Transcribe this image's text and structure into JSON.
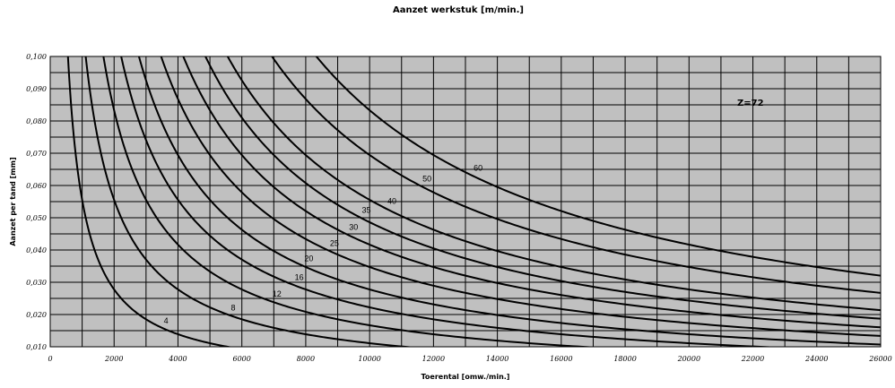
{
  "chart_data": {
    "type": "line",
    "title": "Aanzet werkstuk [m/min.]",
    "xlabel": "Toerental [omw./min.]",
    "ylabel": "Aanzet per tand [mm]",
    "annotation": "Z=72",
    "teeth": 72,
    "xlim": [
      0,
      26000
    ],
    "ylim": [
      0.01,
      0.1
    ],
    "x_ticks": [
      "0",
      "2000",
      "4000",
      "6000",
      "8000",
      "10000",
      "12000",
      "14000",
      "16000",
      "18000",
      "20000",
      "22000",
      "24000",
      "26000"
    ],
    "y_ticks": [
      "0,010",
      "0,020",
      "0,030",
      "0,040",
      "0,050",
      "0,060",
      "0,070",
      "0,080",
      "0,090",
      "0,100"
    ],
    "x_minor_step": 1000,
    "y_minor_step": 0.005,
    "grid": true,
    "formula": "aanzet per tand [mm] = aanzet werkstuk [m/min] * 1000 / (Z * toerental)",
    "series": [
      {
        "name": "4",
        "feed_m_per_min": 4,
        "label_at": 3500
      },
      {
        "name": "8",
        "feed_m_per_min": 8,
        "label_at": 5600
      },
      {
        "name": "12",
        "feed_m_per_min": 12,
        "label_at": 6900
      },
      {
        "name": "16",
        "feed_m_per_min": 16,
        "label_at": 7600
      },
      {
        "name": "20",
        "feed_m_per_min": 20,
        "label_at": 7900
      },
      {
        "name": "25",
        "feed_m_per_min": 25,
        "label_at": 8700
      },
      {
        "name": "30",
        "feed_m_per_min": 30,
        "label_at": 9300
      },
      {
        "name": "35",
        "feed_m_per_min": 35,
        "label_at": 9700
      },
      {
        "name": "40",
        "feed_m_per_min": 40,
        "label_at": 10500
      },
      {
        "name": "50",
        "feed_m_per_min": 50,
        "label_at": 11600
      },
      {
        "name": "60",
        "feed_m_per_min": 60,
        "label_at": 13200
      }
    ]
  }
}
